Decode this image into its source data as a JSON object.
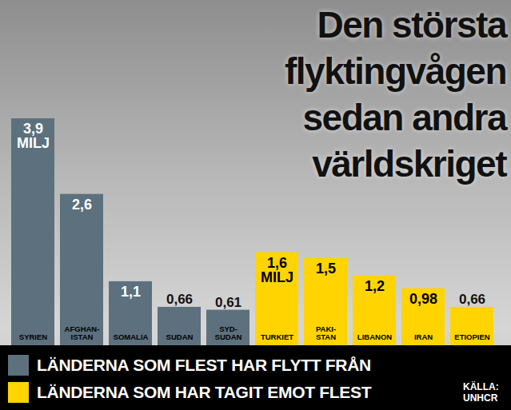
{
  "chart_data": {
    "type": "bar",
    "title": "Den största flyktingvågen sedan andra världskriget",
    "source": "KÄLLA: UNHCR",
    "categories": [
      "SYRIEN",
      "AFGHAN-\nISTAN",
      "SOMALIA",
      "SUDAN",
      "SYD-\nSUDAN",
      "TURKIET",
      "PAKI-\nSTAN",
      "LIBANON",
      "IRAN",
      "ETIOPIEN"
    ],
    "series": [
      {
        "name": "LÄNDERNA SOM FLEST HAR FLYTT FRÅN",
        "color": "#5d707d",
        "values": [
          3.9,
          2.6,
          1.1,
          0.66,
          0.61,
          null,
          null,
          null,
          null,
          null
        ],
        "value_labels": [
          "3,9\nMILJ",
          "2,6",
          "1,1",
          "0,66",
          "0,61",
          null,
          null,
          null,
          null,
          null
        ]
      },
      {
        "name": "LÄNDERNA SOM HAR TAGIT EMOT FLEST",
        "color": "#ffd400",
        "values": [
          null,
          null,
          null,
          null,
          null,
          1.6,
          1.5,
          1.2,
          0.98,
          0.66
        ],
        "value_labels": [
          null,
          null,
          null,
          null,
          null,
          "1,6\nMILJ",
          "1,5",
          "1,2",
          "0,98",
          "0,66"
        ]
      }
    ],
    "ylim": [
      0,
      3.9
    ],
    "data_labels": true,
    "tick_labels": false,
    "legend": "bottom"
  }
}
